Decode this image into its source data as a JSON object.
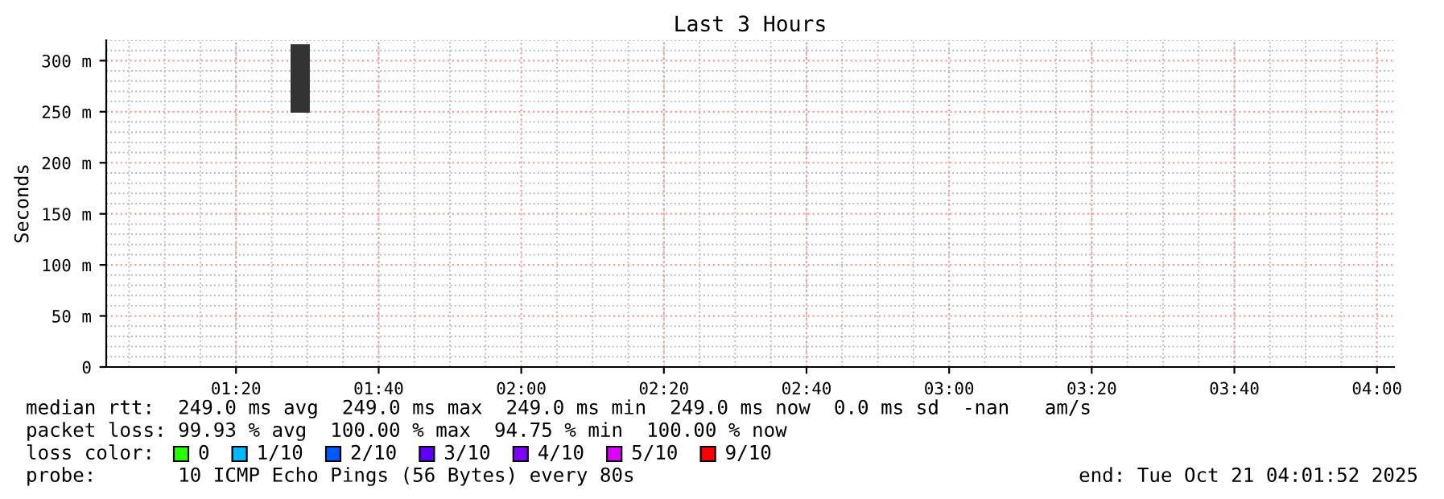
{
  "chart_data": {
    "type": "bar",
    "title": "Last 3 Hours",
    "ylabel": "Seconds",
    "xlim": [
      1.03,
      4.04
    ],
    "ylim": [
      0,
      320
    ],
    "xticks": [
      {
        "value": 1.3333,
        "label": "01:20"
      },
      {
        "value": 1.6667,
        "label": "01:40"
      },
      {
        "value": 2.0,
        "label": "02:00"
      },
      {
        "value": 2.3333,
        "label": "02:20"
      },
      {
        "value": 2.6667,
        "label": "02:40"
      },
      {
        "value": 3.0,
        "label": "03:00"
      },
      {
        "value": 3.3333,
        "label": "03:20"
      },
      {
        "value": 3.6667,
        "label": "03:40"
      },
      {
        "value": 4.0,
        "label": "04:00"
      }
    ],
    "yticks": [
      0,
      {
        "value": 50,
        "label": "50 m"
      },
      {
        "value": 100,
        "label": "100 m"
      },
      {
        "value": 150,
        "label": "150 m"
      },
      {
        "value": 200,
        "label": "200 m"
      },
      {
        "value": 250,
        "label": "250 m"
      },
      {
        "value": 300,
        "label": "300 m"
      }
    ],
    "grid": true,
    "series": [
      {
        "color": "#333333",
        "x": [
          1.4833
        ],
        "base": [
          249
        ],
        "values": [
          67
        ]
      },
      {
        "name": "0",
        "color": "#26ff00",
        "values": [
          null
        ]
      },
      {
        "name": "1/10",
        "color": "#00b8ff",
        "values": [
          null
        ]
      },
      {
        "name": "2/10",
        "color": "#0059ff",
        "values": [
          null
        ]
      },
      {
        "name": "3/10",
        "color": "#5e00ff",
        "values": [
          null
        ]
      },
      {
        "name": "4/10",
        "color": "#7e00ff",
        "values": [
          null
        ]
      },
      {
        "name": "5/10",
        "color": "#dd00ff",
        "values": [
          null
        ]
      },
      {
        "name": "9/10",
        "color": "#ff0000",
        "values": [
          null
        ]
      }
    ],
    "legend": "bottom",
    "annotations": [
      "median rtt:  249.0 ms avg  249.0 ms max  249.0 ms min  249.0 ms now  0.0 ms sd  -nan   am/s",
      "packet loss: 99.93 % avg  100.00 % max  94.75 % min  100.00 % now",
      "loss color:",
      "probe:       10 ICMP Echo Pings (56 Bytes) every 80s",
      "end: Tue Oct 21 04:01:52 2025"
    ]
  }
}
